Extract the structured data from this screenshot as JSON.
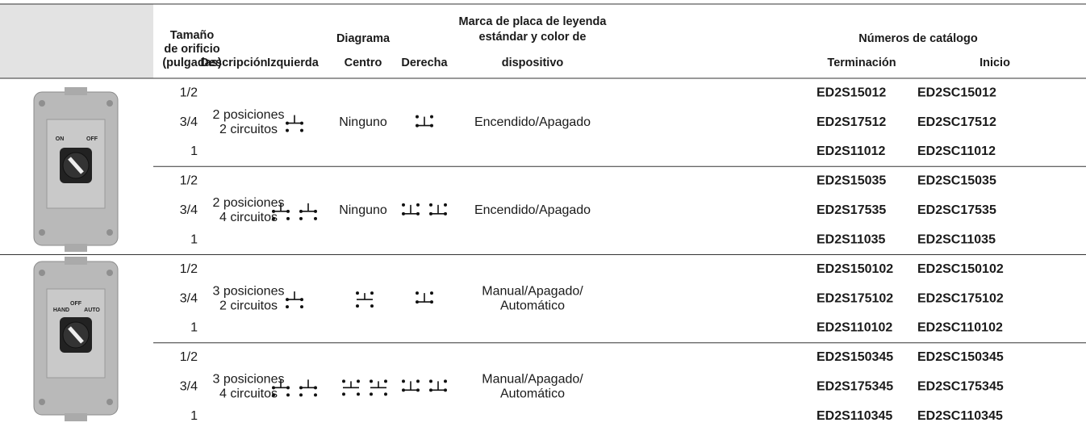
{
  "header": {
    "size": [
      "Tamaño",
      "de orificio",
      "(pulgadas)"
    ],
    "description": "Descripción",
    "diagram": "Diagrama",
    "left": "Izquierda",
    "center": "Centro",
    "right": "Derecha",
    "legend": [
      "Marca de placa de leyenda",
      "estándar y color de",
      "dispositivo"
    ],
    "catalog": "Números de catálogo",
    "termination": "Terminación",
    "start": "Inicio"
  },
  "photos": [
    {
      "labels": [
        "ON",
        "OFF"
      ]
    },
    {
      "labels": [
        "OFF",
        "HAND",
        "AUTO"
      ]
    }
  ],
  "groups": [
    {
      "sizes": [
        "1/2",
        "3/4",
        "1"
      ],
      "description": [
        "2 posiciones",
        "2 circuitos"
      ],
      "center": "Ninguno",
      "legend": [
        "Encendido/Apagado"
      ],
      "catalog": [
        [
          "ED2S15012",
          "ED2SC15012"
        ],
        [
          "ED2S17512",
          "ED2SC17512"
        ],
        [
          "ED2S11012",
          "ED2SC11012"
        ]
      ]
    },
    {
      "sizes": [
        "1/2",
        "3/4",
        "1"
      ],
      "description": [
        "2 posiciones",
        "4 circuitos"
      ],
      "center": "Ninguno",
      "legend": [
        "Encendido/Apagado"
      ],
      "catalog": [
        [
          "ED2S15035",
          "ED2SC15035"
        ],
        [
          "ED2S17535",
          "ED2SC17535"
        ],
        [
          "ED2S11035",
          "ED2SC11035"
        ]
      ]
    },
    {
      "sizes": [
        "1/2",
        "3/4",
        "1"
      ],
      "description": [
        "3 posiciones",
        "2 circuitos"
      ],
      "legend": [
        "Manual/Apagado/",
        "Automático"
      ],
      "catalog": [
        [
          "ED2S150102",
          "ED2SC150102"
        ],
        [
          "ED2S175102",
          "ED2SC175102"
        ],
        [
          "ED2S110102",
          "ED2SC110102"
        ]
      ]
    },
    {
      "sizes": [
        "1/2",
        "3/4",
        "1"
      ],
      "description": [
        "3 posiciones",
        "4 circuitos"
      ],
      "legend": [
        "Manual/Apagado/",
        "Automático"
      ],
      "catalog": [
        [
          "ED2S150345",
          "ED2SC150345"
        ],
        [
          "ED2S175345",
          "ED2SC175345"
        ],
        [
          "ED2S110345",
          "ED2SC110345"
        ]
      ]
    }
  ]
}
